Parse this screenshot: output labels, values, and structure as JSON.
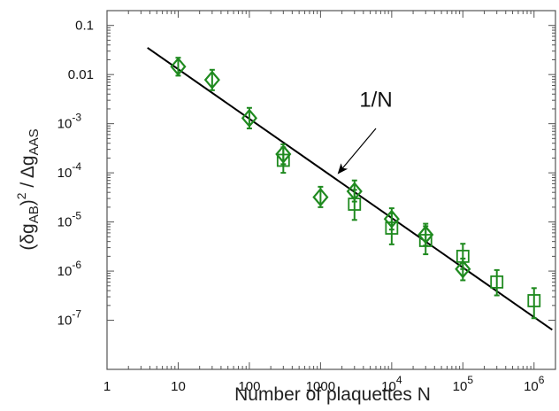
{
  "chart_data": {
    "type": "scatter",
    "title": "",
    "xlabel": "Number of plaquettes N",
    "ylabel_parts": {
      "open": "(",
      "delta": "δ",
      "g": "g",
      "sub1": "AB",
      "close": ")",
      "sup": "2",
      "slash": " / ",
      "Delta": "Δ",
      "g2": "g",
      "sub2": "AAS"
    },
    "xscale": "log",
    "yscale": "log",
    "xlim": [
      1,
      2000000
    ],
    "ylim": [
      1e-08,
      0.2
    ],
    "x_ticks": [
      {
        "value": 1,
        "base": "1",
        "exp": ""
      },
      {
        "value": 10,
        "base": "10",
        "exp": ""
      },
      {
        "value": 100,
        "base": "100",
        "exp": ""
      },
      {
        "value": 1000,
        "base": "1000",
        "exp": ""
      },
      {
        "value": 10000,
        "base": "10",
        "exp": "4"
      },
      {
        "value": 100000,
        "base": "10",
        "exp": "5"
      },
      {
        "value": 1000000,
        "base": "10",
        "exp": "6"
      }
    ],
    "y_ticks": [
      {
        "value": 0.1,
        "base": "0.1",
        "exp": ""
      },
      {
        "value": 0.01,
        "base": "0.01",
        "exp": ""
      },
      {
        "value": 0.001,
        "base": "10",
        "exp": "-3"
      },
      {
        "value": 0.0001,
        "base": "10",
        "exp": "-4"
      },
      {
        "value": 1e-05,
        "base": "10",
        "exp": "-5"
      },
      {
        "value": 1e-06,
        "base": "10",
        "exp": "-6"
      },
      {
        "value": 1e-07,
        "base": "10",
        "exp": "-7"
      }
    ],
    "grid": false,
    "color": "#1f8a1f",
    "series": [
      {
        "marker": "diamond",
        "points": [
          {
            "x": 10,
            "y": 0.0145,
            "ylo": 0.0095,
            "yhi": 0.022
          },
          {
            "x": 30,
            "y": 0.0078,
            "ylo": 0.0048,
            "yhi": 0.0125
          },
          {
            "x": 100,
            "y": 0.0013,
            "ylo": 0.0008,
            "yhi": 0.0021
          },
          {
            "x": 300,
            "y": 0.00024,
            "ylo": 0.00015,
            "yhi": 0.00038
          },
          {
            "x": 1000,
            "y": 3.2e-05,
            "ylo": 2e-05,
            "yhi": 5.2e-05
          },
          {
            "x": 3000,
            "y": 4.2e-05,
            "ylo": 2.6e-05,
            "yhi": 7e-05
          },
          {
            "x": 10000,
            "y": 1.15e-05,
            "ylo": 7e-06,
            "yhi": 1.9e-05
          },
          {
            "x": 30000,
            "y": 5.5e-06,
            "ylo": 3.3e-06,
            "yhi": 9.2e-06
          },
          {
            "x": 100000,
            "y": 1.1e-06,
            "ylo": 6.5e-07,
            "yhi": 1.8e-06
          }
        ]
      },
      {
        "marker": "square",
        "points": [
          {
            "x": 300,
            "y": 0.00018,
            "ylo": 0.0001,
            "yhi": 0.00033
          },
          {
            "x": 3000,
            "y": 2.3e-05,
            "ylo": 1.1e-05,
            "yhi": 4.5e-05
          },
          {
            "x": 10000,
            "y": 7.5e-06,
            "ylo": 3.5e-06,
            "yhi": 1.5e-05
          },
          {
            "x": 30000,
            "y": 4.2e-06,
            "ylo": 2.2e-06,
            "yhi": 8.2e-06
          },
          {
            "x": 100000,
            "y": 2e-06,
            "ylo": 1.1e-06,
            "yhi": 3.6e-06
          },
          {
            "x": 300000,
            "y": 6e-07,
            "ylo": 3.2e-07,
            "yhi": 1.05e-06
          },
          {
            "x": 1000000,
            "y": 2.5e-07,
            "ylo": 1.1e-07,
            "yhi": 4.5e-07
          }
        ]
      }
    ],
    "reference_line": {
      "label": "1/N",
      "x": [
        3.7,
        1800000
      ],
      "y": [
        0.035,
        6.4e-08
      ],
      "color": "#000000"
    },
    "annotation": {
      "text": "1/N",
      "text_at": {
        "x": 6000,
        "y": 0.0022
      },
      "arrow_from": {
        "x": 6000,
        "y": 0.0008
      },
      "arrow_to": {
        "x": 1800,
        "y": 0.0001
      }
    }
  }
}
